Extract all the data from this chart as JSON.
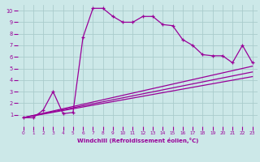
{
  "bg_color": "#cce8e8",
  "grid_color": "#aacccc",
  "line_color": "#990099",
  "xlim": [
    -0.5,
    23.5
  ],
  "ylim": [
    0,
    10.5
  ],
  "xticks": [
    0,
    1,
    2,
    3,
    4,
    5,
    6,
    7,
    8,
    9,
    10,
    11,
    12,
    13,
    14,
    15,
    16,
    17,
    18,
    19,
    20,
    21,
    22,
    23
  ],
  "yticks": [
    1,
    2,
    3,
    4,
    5,
    6,
    7,
    8,
    9,
    10
  ],
  "xlabel": "Windchill (Refroidissement éolien,°C)",
  "series1_x": [
    0,
    1,
    2,
    3,
    4,
    5,
    6,
    7,
    8,
    9,
    10,
    11,
    12,
    13,
    14,
    15,
    16,
    17,
    18,
    19,
    20,
    21,
    22,
    23
  ],
  "series1_y": [
    0.75,
    0.75,
    1.4,
    3.0,
    1.1,
    1.2,
    7.7,
    10.2,
    10.2,
    9.5,
    9.0,
    9.0,
    9.5,
    9.5,
    8.8,
    8.7,
    7.5,
    7.0,
    6.2,
    6.1,
    6.1,
    5.5,
    7.0,
    5.5
  ],
  "series2_x": [
    0,
    23
  ],
  "series2_y": [
    0.75,
    5.2
  ],
  "series3_x": [
    0,
    23
  ],
  "series3_y": [
    0.75,
    4.7
  ],
  "series4_x": [
    0,
    23
  ],
  "series4_y": [
    0.75,
    4.3
  ]
}
